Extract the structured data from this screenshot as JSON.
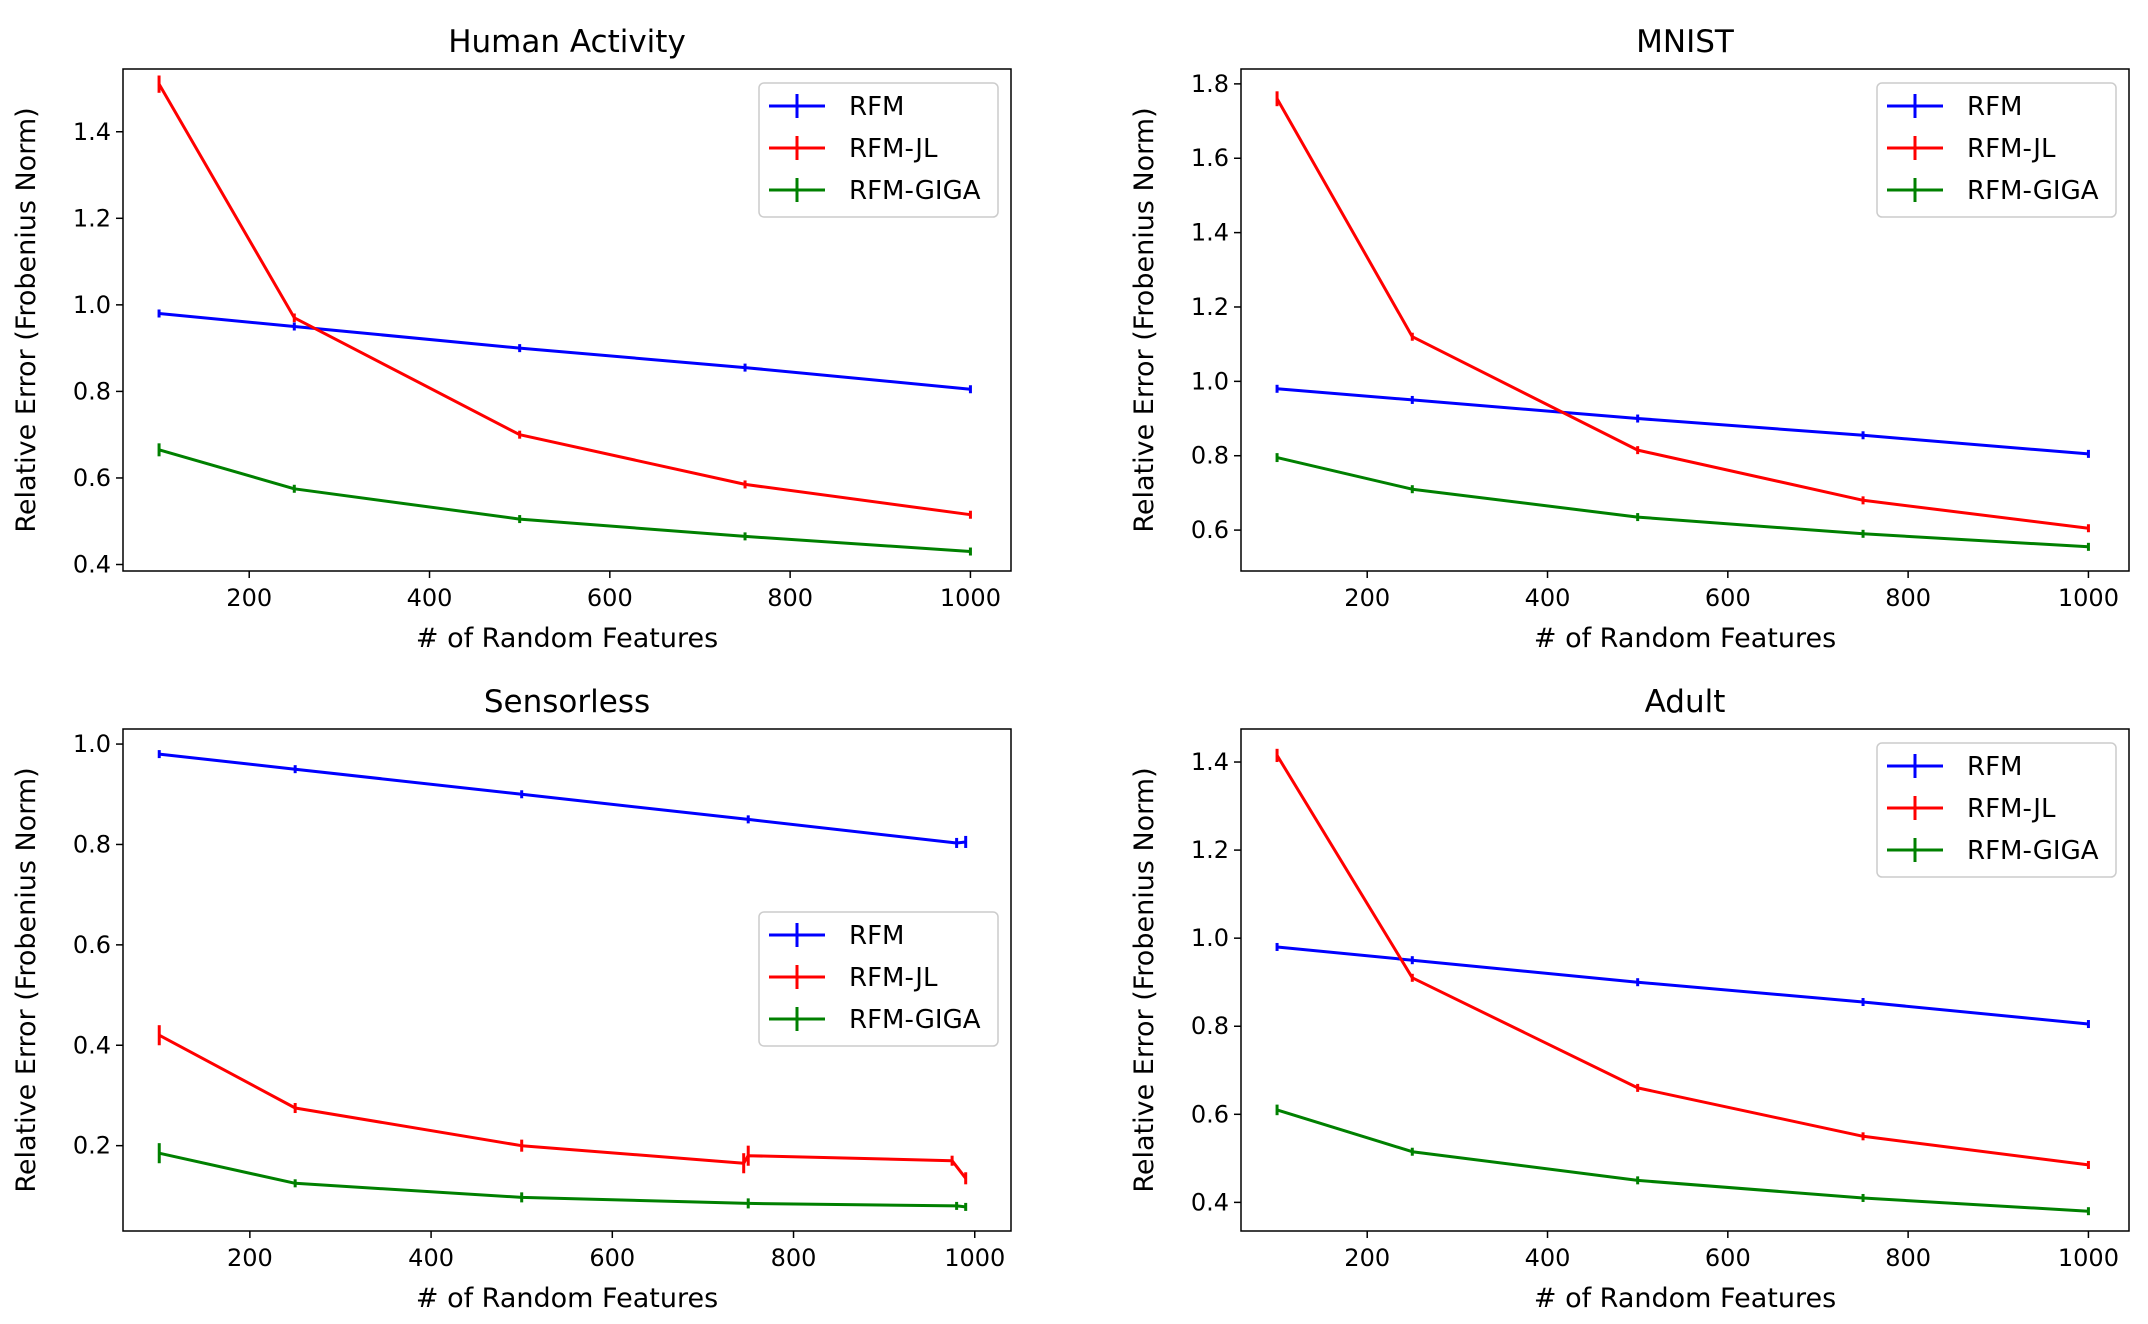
{
  "chart_data": [
    {
      "type": "line",
      "title": "Human Activity",
      "xlabel": "# of Random Features",
      "ylabel": "Relative Error (Frobenius Norm)",
      "xlim": [
        60,
        1045
      ],
      "ylim": [
        0.385,
        1.545
      ],
      "xticks": [
        200,
        400,
        600,
        800,
        1000
      ],
      "yticks": [
        0.4,
        0.6,
        0.8,
        1.0,
        1.2,
        1.4
      ],
      "ytick_labels": [
        "0.4",
        "0.6",
        "0.8",
        "1.0",
        "1.2",
        "1.4"
      ],
      "legend": "top-right",
      "series": [
        {
          "name": "RFM",
          "color": "#0000ff",
          "x": [
            100,
            250,
            500,
            750,
            1000
          ],
          "y": [
            0.98,
            0.95,
            0.9,
            0.855,
            0.805
          ],
          "err": [
            0.004,
            0.003,
            0.003,
            0.003,
            0.003
          ]
        },
        {
          "name": "RFM-JL",
          "color": "#ff0000",
          "x": [
            100,
            250,
            500,
            750,
            1000
          ],
          "y": [
            1.51,
            0.97,
            0.7,
            0.585,
            0.515
          ],
          "err": [
            0.02,
            0.01,
            0.005,
            0.004,
            0.003
          ]
        },
        {
          "name": "RFM-GIGA",
          "color": "#008000",
          "x": [
            100,
            250,
            500,
            750,
            1000
          ],
          "y": [
            0.665,
            0.575,
            0.505,
            0.465,
            0.43
          ],
          "err": [
            0.015,
            0.008,
            0.004,
            0.003,
            0.003
          ]
        }
      ]
    },
    {
      "type": "line",
      "title": "MNIST",
      "xlabel": "# of Random Features",
      "ylabel": "Relative Error (Frobenius Norm)",
      "xlim": [
        60,
        1045
      ],
      "ylim": [
        0.49,
        1.84
      ],
      "xticks": [
        200,
        400,
        600,
        800,
        1000
      ],
      "yticks": [
        0.6,
        0.8,
        1.0,
        1.2,
        1.4,
        1.6,
        1.8
      ],
      "ytick_labels": [
        "0.6",
        "0.8",
        "1.0",
        "1.2",
        "1.4",
        "1.6",
        "1.8"
      ],
      "legend": "top-right",
      "series": [
        {
          "name": "RFM",
          "color": "#0000ff",
          "x": [
            100,
            250,
            500,
            750,
            1000
          ],
          "y": [
            0.98,
            0.95,
            0.9,
            0.855,
            0.805
          ],
          "err": [
            0.004,
            0.003,
            0.003,
            0.003,
            0.003
          ]
        },
        {
          "name": "RFM-JL",
          "color": "#ff0000",
          "x": [
            100,
            250,
            500,
            750,
            1000
          ],
          "y": [
            1.76,
            1.12,
            0.815,
            0.68,
            0.605
          ],
          "err": [
            0.02,
            0.01,
            0.005,
            0.004,
            0.003
          ]
        },
        {
          "name": "RFM-GIGA",
          "color": "#008000",
          "x": [
            100,
            250,
            500,
            750,
            1000
          ],
          "y": [
            0.795,
            0.71,
            0.635,
            0.59,
            0.555
          ],
          "err": [
            0.012,
            0.008,
            0.004,
            0.003,
            0.003
          ]
        }
      ]
    },
    {
      "type": "line",
      "title": "Sensorless",
      "xlabel": "# of Random Features",
      "ylabel": "Relative Error (Frobenius Norm)",
      "xlim": [
        60,
        1040
      ],
      "ylim": [
        0.03,
        1.03
      ],
      "xticks": [
        200,
        400,
        600,
        800,
        1000
      ],
      "yticks": [
        0.2,
        0.4,
        0.6,
        0.8,
        1.0
      ],
      "ytick_labels": [
        "0.2",
        "0.4",
        "0.6",
        "0.8",
        "1.0"
      ],
      "legend": "center-right",
      "series": [
        {
          "name": "RFM",
          "color": "#0000ff",
          "x": [
            100,
            250,
            500,
            750,
            980,
            990
          ],
          "y": [
            0.98,
            0.95,
            0.9,
            0.85,
            0.803,
            0.805
          ],
          "err": [
            0.004,
            0.003,
            0.005,
            0.008,
            0.01,
            0.012
          ]
        },
        {
          "name": "RFM-JL",
          "color": "#ff0000",
          "x": [
            100,
            250,
            500,
            745,
            750,
            975,
            990
          ],
          "y": [
            0.42,
            0.275,
            0.2,
            0.165,
            0.18,
            0.17,
            0.135
          ],
          "err": [
            0.02,
            0.01,
            0.012,
            0.02,
            0.02,
            0.01,
            0.012
          ]
        },
        {
          "name": "RFM-GIGA",
          "color": "#008000",
          "x": [
            100,
            250,
            500,
            750,
            980,
            990
          ],
          "y": [
            0.185,
            0.125,
            0.097,
            0.085,
            0.08,
            0.078
          ],
          "err": [
            0.02,
            0.008,
            0.01,
            0.01,
            0.006,
            0.006
          ]
        }
      ]
    },
    {
      "type": "line",
      "title": "Adult",
      "xlabel": "# of Random Features",
      "ylabel": "Relative Error (Frobenius Norm)",
      "xlim": [
        60,
        1045
      ],
      "ylim": [
        0.335,
        1.475
      ],
      "xticks": [
        200,
        400,
        600,
        800,
        1000
      ],
      "yticks": [
        0.4,
        0.6,
        0.8,
        1.0,
        1.2,
        1.4
      ],
      "ytick_labels": [
        "0.4",
        "0.6",
        "0.8",
        "1.0",
        "1.2",
        "1.4"
      ],
      "legend": "top-right",
      "series": [
        {
          "name": "RFM",
          "color": "#0000ff",
          "x": [
            100,
            250,
            500,
            750,
            1000
          ],
          "y": [
            0.98,
            0.95,
            0.9,
            0.855,
            0.805
          ],
          "err": [
            0.004,
            0.003,
            0.003,
            0.003,
            0.003
          ]
        },
        {
          "name": "RFM-JL",
          "color": "#ff0000",
          "x": [
            100,
            250,
            500,
            750,
            1000
          ],
          "y": [
            1.415,
            0.91,
            0.66,
            0.55,
            0.485
          ],
          "err": [
            0.015,
            0.008,
            0.004,
            0.003,
            0.003
          ]
        },
        {
          "name": "RFM-GIGA",
          "color": "#008000",
          "x": [
            100,
            250,
            500,
            750,
            1000
          ],
          "y": [
            0.61,
            0.515,
            0.45,
            0.41,
            0.38
          ],
          "err": [
            0.012,
            0.006,
            0.003,
            0.003,
            0.003
          ]
        }
      ]
    }
  ]
}
